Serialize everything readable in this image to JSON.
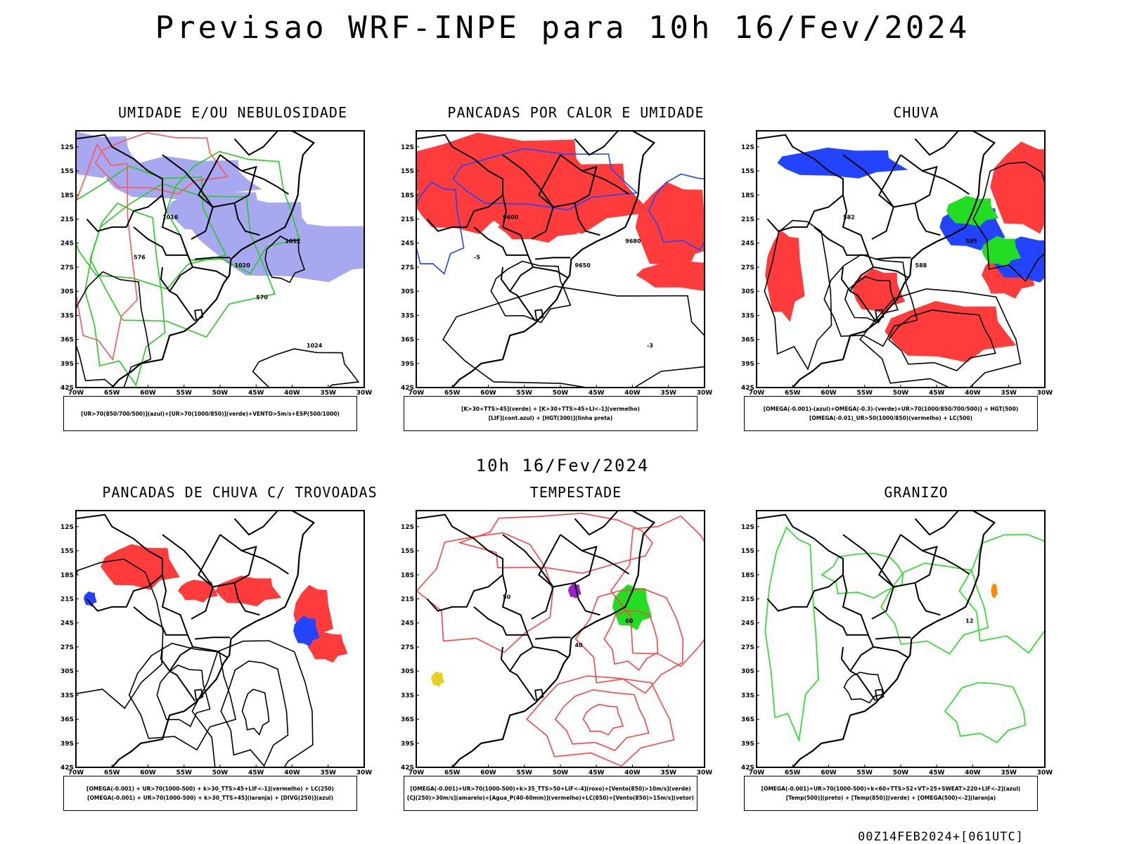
{
  "header": {
    "title": "Previsao WRF-INPE  para 10h 16/Fev/2024"
  },
  "middle": {
    "time_label": "10h 16/Fev/2024"
  },
  "footer": {
    "stamp": "00Z14FEB2024+[061UTC]"
  },
  "axes": {
    "lat_labels": [
      "12S",
      "15S",
      "18S",
      "21S",
      "24S",
      "27S",
      "30S",
      "33S",
      "36S",
      "39S",
      "42S"
    ],
    "lon_labels": [
      "70W",
      "65W",
      "60W",
      "55W",
      "50W",
      "45W",
      "40W",
      "35W",
      "30W"
    ]
  },
  "colors": {
    "umidade_azul": "#a8a8f0",
    "umidade_verde": "#22cc22",
    "vermelho": "#ff3b3b",
    "azul": "#2244ff",
    "verde": "#22dd22",
    "laranja": "#ff8800",
    "amarelo": "#e8d020",
    "roxo": "#9922cc",
    "linha": "#000000"
  },
  "panels": [
    {
      "title": "UMIDADE E/OU NEBULOSIDADE",
      "legend": [
        "[UR>70(850/700/500)](azul)+[UR>70(1000/850)](verde)+VENTO>5m/s+ESP(500/1000)"
      ],
      "contour_labels": [
        "1012",
        "1016",
        "1020",
        "1024",
        "576",
        "570"
      ]
    },
    {
      "title": "PANCADAS POR CALOR E UMIDADE",
      "legend": [
        "[K>30+TTS>45](verde) + [K>30+TTS>45+LI<-1](vermelho)",
        "[LIF](cont.azul) + [HGT(300)](linha preta)"
      ],
      "contour_labels": [
        "9680",
        "9600",
        "9650",
        "-3",
        "-5"
      ]
    },
    {
      "title": "CHUVA",
      "legend": [
        "[OMEGA(-0.001)-(azul)+OMEGA(-0.3)-(verde)+UR>70(1000/850/700/500)] + HGT(500)",
        "[OMEGA(-0.01)_UR>50(1000/850)(vermelho) + LC(500)"
      ],
      "contour_labels": [
        "585",
        "582",
        "588"
      ]
    },
    {
      "title": "PANCADAS DE CHUVA C/ TROVOADAS",
      "legend": [
        "[OMEGA(-0.001) + UR>70(1000-500) + k>30_TTS>45+LIF<-1](vermelho) + LC(250)",
        "[OMEGA(-0.001) + UR>70(1000-500) + k>30_TTS>45](laranja) + [DIVG(250)](azul)"
      ],
      "contour_labels": []
    },
    {
      "title": "TEMPESTADE",
      "legend": [
        "[OMEGA(-0.001)+UR>70(1000-500)+k>35_TTS>50+LIF<-4](roxo)+[Vento(850)>10m/s](verde)",
        "[CJ(250)>30m/s](amarelo)+[Agua_P(40-60mm)](vermelho)+LC(850)+[Vento(850)>15m/s](vetor)"
      ],
      "contour_labels": [
        "60",
        "50",
        "40"
      ]
    },
    {
      "title": "GRANIZO",
      "legend": [
        "[OMEGA(-0.001)+UR>70(1000-500)+k<60+TTS>52+VT>25+SWEAT>220+LIF<-2](azul)",
        "[Temp(500)](preto) + [Temp(850)](verde) + [OMEGA(500)<-2](laranja)"
      ],
      "contour_labels": [
        "12"
      ]
    }
  ]
}
